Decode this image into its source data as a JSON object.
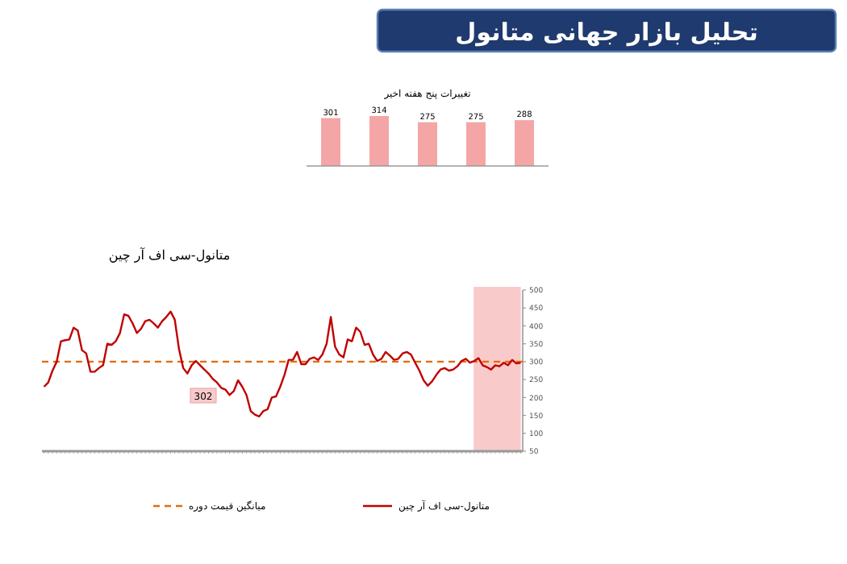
{
  "chart_data": [
    {
      "type": "bar",
      "title": "تحلیل بازار جهانی متانول",
      "subtitle": "تغییرات پنج هفته اخیر",
      "categories": [
        null,
        null,
        null,
        null,
        null
      ],
      "values": [
        301,
        314,
        275,
        275,
        288
      ],
      "color": "#f4a6a6",
      "data_labels": true,
      "tick_labels": false
    },
    {
      "type": "line",
      "title": "متانول-سی اف آر چین",
      "categories": [
        null,
        null,
        null,
        null,
        null,
        null,
        null,
        null,
        null,
        null,
        null,
        null,
        null,
        null,
        null,
        null,
        null,
        null,
        null,
        null,
        null,
        null,
        null,
        null,
        null,
        null,
        null,
        null,
        null,
        null,
        null,
        null,
        null,
        null,
        null,
        null,
        null,
        null,
        null,
        null,
        null,
        null,
        null,
        null,
        null,
        null,
        null,
        null,
        null,
        null,
        null,
        null,
        null,
        null,
        null,
        null,
        null,
        null,
        null,
        null,
        null,
        null,
        null,
        null,
        null,
        null,
        null,
        null,
        null,
        null,
        null,
        null,
        null,
        null,
        null,
        null,
        null,
        null,
        null,
        null,
        null,
        null,
        null,
        null,
        null,
        null,
        null,
        null,
        null,
        null,
        null,
        null,
        null,
        null,
        null,
        null,
        null,
        null,
        null,
        null,
        null,
        null,
        null,
        null,
        null,
        null,
        null,
        null,
        null,
        null,
        null,
        null,
        null,
        null
      ],
      "series": [
        {
          "name": "متانول-سی اف آر چین",
          "color": "#c00000",
          "values": [
            230,
            242,
            275,
            300,
            357,
            360,
            362,
            395,
            387,
            332,
            323,
            272,
            272,
            282,
            290,
            350,
            347,
            357,
            380,
            432,
            428,
            407,
            380,
            392,
            413,
            417,
            407,
            395,
            413,
            425,
            440,
            417,
            335,
            282,
            267,
            290,
            302,
            290,
            278,
            267,
            252,
            242,
            227,
            222,
            207,
            218,
            248,
            230,
            207,
            162,
            152,
            147,
            162,
            167,
            200,
            203,
            230,
            263,
            305,
            305,
            327,
            293,
            293,
            308,
            312,
            305,
            320,
            350,
            425,
            342,
            320,
            312,
            362,
            357,
            395,
            383,
            347,
            350,
            320,
            302,
            308,
            327,
            317,
            305,
            308,
            323,
            327,
            320,
            297,
            275,
            248,
            233,
            245,
            263,
            278,
            282,
            275,
            278,
            287,
            302,
            308,
            297,
            302,
            310,
            290,
            285,
            278,
            290,
            287,
            297,
            290,
            305,
            295,
            297
          ]
        }
      ],
      "ref_lines": [
        {
          "axis": "y",
          "value": 300,
          "label": "میانگین قیمت دوره",
          "color": "#e36c09",
          "line_style": "dashed"
        }
      ],
      "annotations": [
        "302"
      ],
      "ylim": [
        50,
        500
      ],
      "yticks": [
        50,
        100,
        150,
        200,
        250,
        300,
        350,
        400,
        450,
        500
      ],
      "tick_labels": "y",
      "legend": "bottom",
      "grid": false,
      "marker": "none",
      "line_style": "solid"
    }
  ]
}
